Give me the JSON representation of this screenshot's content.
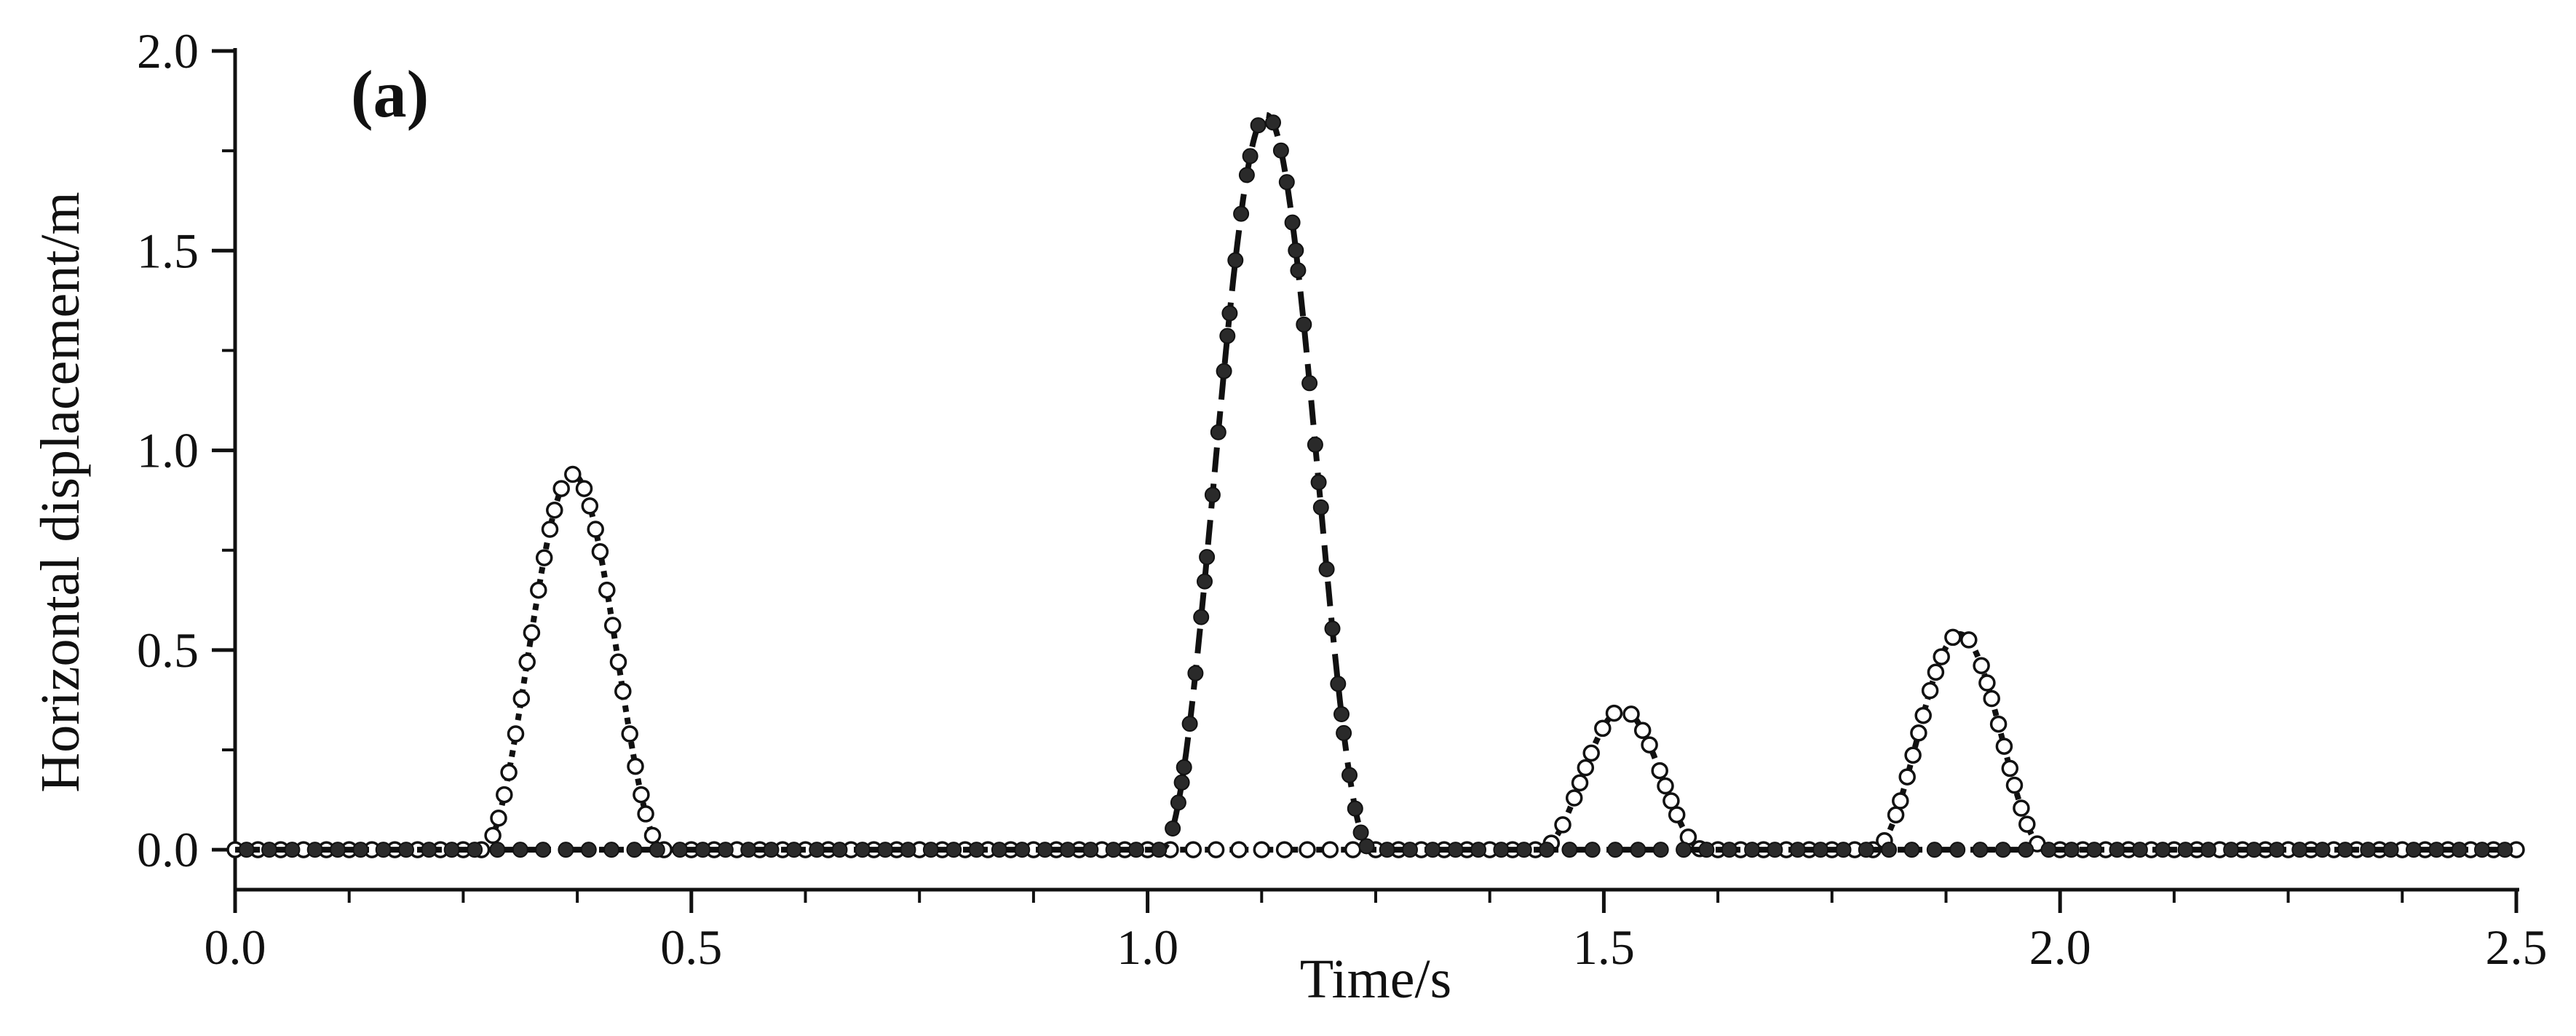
{
  "chart_data": {
    "type": "line",
    "panel_label": "(a)",
    "xlabel": "Time/s",
    "ylabel": "Horizontal displacement/m",
    "xlim": [
      0,
      2.5
    ],
    "ylim": [
      -0.1,
      2.0
    ],
    "xticks": [
      "0.0",
      "0.5",
      "1.0",
      "1.5",
      "2.0",
      "2.5"
    ],
    "yticks": [
      "0.0",
      "0.5",
      "1.0",
      "1.5",
      "2.0"
    ],
    "grid": false,
    "series": [
      {
        "marker": "open-circle",
        "line_style": "dotted",
        "color": "#111111",
        "peaks": [
          {
            "t": 0.37,
            "amplitude": 0.94,
            "half_width": 0.1
          },
          {
            "t": 1.52,
            "amplitude": 0.35,
            "half_width": 0.09
          },
          {
            "t": 1.89,
            "amplitude": 0.54,
            "half_width": 0.095
          }
        ]
      },
      {
        "marker": "filled-circle",
        "line_style": "dashed",
        "color": "#111111",
        "peaks": [
          {
            "t": 1.13,
            "amplitude": 1.84,
            "half_width": 0.115
          }
        ]
      }
    ]
  }
}
